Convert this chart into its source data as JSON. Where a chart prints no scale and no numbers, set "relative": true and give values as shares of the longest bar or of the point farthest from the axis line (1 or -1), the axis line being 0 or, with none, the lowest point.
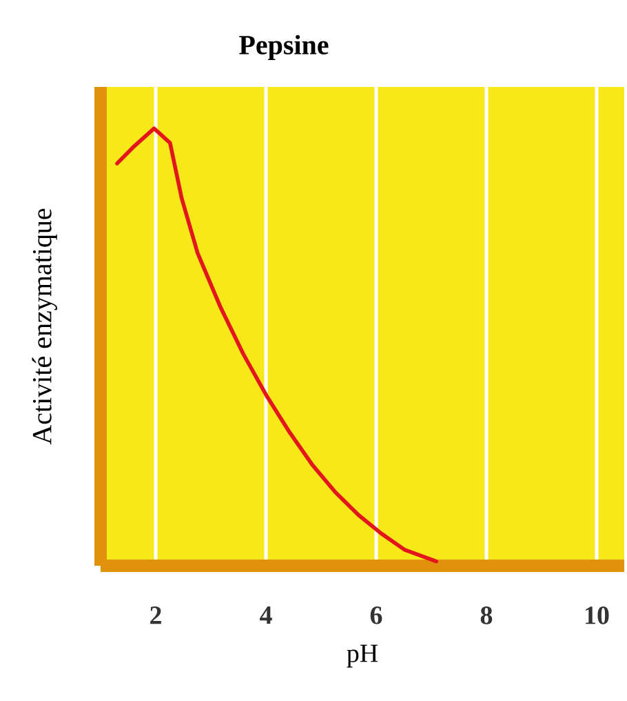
{
  "chart_data": {
    "type": "line",
    "title": "Pepsine",
    "xlabel": "pH",
    "ylabel": "Activité enzymatique",
    "relative": true,
    "xlim": [
      1,
      10.5
    ],
    "xticks": [
      2,
      4,
      6,
      8,
      10
    ],
    "grid": "x",
    "marker": "none",
    "line_style": "solid",
    "series": [
      {
        "color": "#e3161e",
        "x": [
          1.3,
          1.59,
          1.97,
          2.26,
          2.47,
          2.76,
          3.18,
          3.59,
          4.01,
          4.43,
          4.84,
          5.26,
          5.68,
          6.09,
          6.51,
          7.09
        ],
        "values": [
          0.92,
          0.957,
          1.0,
          0.967,
          0.841,
          0.715,
          0.59,
          0.484,
          0.389,
          0.305,
          0.231,
          0.168,
          0.116,
          0.074,
          0.037,
          0.01
        ]
      }
    ]
  }
}
